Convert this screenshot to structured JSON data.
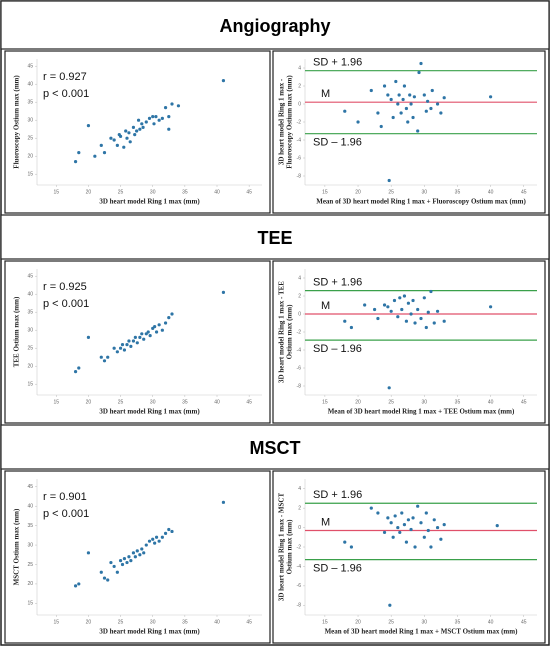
{
  "sections": [
    {
      "title": "Angiography"
    },
    {
      "title": "TEE"
    },
    {
      "title": "MSCT"
    }
  ],
  "chart_data": [
    {
      "type": "scatter",
      "xlabel": "3D heart model Ring 1 max (mm)",
      "ylabel": "Fluoroscopy Ostium max (mm)",
      "annotations": [
        "r = 0.927",
        "p < 0.001"
      ],
      "color": "#2e75a6",
      "x": [
        18,
        18.5,
        20,
        21,
        22,
        22.5,
        23.5,
        24,
        24.5,
        24.8,
        25,
        25.5,
        25.8,
        26,
        26.3,
        26.5,
        27,
        27.2,
        27.5,
        27.8,
        28,
        28.3,
        28.5,
        29,
        29.5,
        30,
        30.2,
        30.5,
        31,
        31.5,
        32,
        32.5,
        33,
        32.5,
        34,
        41
      ],
      "values": [
        18.5,
        21,
        28.5,
        20,
        23,
        21,
        25,
        24.5,
        23,
        26,
        25.5,
        22.5,
        27,
        25,
        26.5,
        24,
        28,
        26,
        27,
        30,
        27.5,
        29,
        28,
        29.5,
        30.5,
        31,
        29,
        31,
        30,
        30.5,
        33.5,
        31,
        34.5,
        27.5,
        34,
        41
      ],
      "xlim": [
        12,
        47
      ],
      "xticks": [
        15,
        20,
        25,
        30,
        35,
        40,
        45
      ],
      "ylim": [
        12,
        47
      ],
      "yticks": [
        15,
        20,
        25,
        30,
        35,
        40,
        45
      ]
    },
    {
      "type": "scatter",
      "xlabel": "Mean of 3D heart model Ring 1 max + Fluoroscopy Ostium max (mm)",
      "ylabel": [
        "3D heart model Ring 1 max -",
        "Fluoroscopy Ostium max (mm)"
      ],
      "color": "#2e75a6",
      "x": [
        18,
        20,
        22,
        23,
        23.5,
        24,
        24.5,
        24.7,
        25,
        25.3,
        25.7,
        26,
        26.2,
        26.5,
        26.8,
        27,
        27.3,
        27.5,
        27.8,
        28,
        28.3,
        28.5,
        29,
        29.2,
        29.5,
        30,
        30.3,
        30.5,
        31,
        31.2,
        32,
        32.5,
        33,
        40
      ],
      "values": [
        -0.8,
        -2,
        1.5,
        -1,
        -2.5,
        2,
        1,
        -8.5,
        0.5,
        -1.5,
        2.5,
        0,
        1,
        -1,
        0.5,
        2,
        -0.5,
        -2,
        1,
        0,
        -1.5,
        0.8,
        -3,
        3.5,
        4.5,
        1,
        -0.8,
        0.3,
        -0.5,
        1.5,
        0,
        -1,
        0.7,
        0.8
      ],
      "hlines": [
        {
          "label": "SD + 1.96",
          "value": 3.7,
          "color": "#3aa04a"
        },
        {
          "label": "M",
          "value": 0.2,
          "color": "#e0506a"
        },
        {
          "label": "SD – 1.96",
          "value": -3.3,
          "color": "#3aa04a"
        }
      ],
      "xlim": [
        12,
        47
      ],
      "xticks": [
        15,
        20,
        25,
        30,
        35,
        40,
        45
      ],
      "ylim": [
        -9,
        5
      ],
      "yticks": [
        -8,
        -6,
        -4,
        -2,
        0,
        2,
        4
      ]
    },
    {
      "type": "scatter",
      "xlabel": "3D heart model Ring 1 max (mm)",
      "ylabel": "TEE Ostium max (mm)",
      "annotations": [
        "r = 0.925",
        "p < 0.001"
      ],
      "color": "#2e75a6",
      "x": [
        18,
        18.5,
        20,
        22,
        22.5,
        23,
        24,
        24.5,
        25,
        25.3,
        25.6,
        26,
        26.3,
        26.6,
        27,
        27.3,
        27.6,
        28,
        28.3,
        28.6,
        29,
        29.3,
        29.6,
        30,
        30.3,
        30.6,
        31,
        31.5,
        32,
        32.5,
        33,
        41
      ],
      "values": [
        18.5,
        19.5,
        28,
        22.5,
        21.5,
        22.5,
        25,
        24,
        25,
        26,
        24.5,
        26,
        27,
        25.5,
        27,
        28,
        26.5,
        28,
        29,
        27.5,
        29,
        29.5,
        28.5,
        30.5,
        31,
        29.5,
        31.5,
        30,
        32,
        33.5,
        34.5,
        40.5
      ],
      "xlim": [
        12,
        47
      ],
      "xticks": [
        15,
        20,
        25,
        30,
        35,
        40,
        45
      ],
      "ylim": [
        12,
        47
      ],
      "yticks": [
        15,
        20,
        25,
        30,
        35,
        40,
        45
      ]
    },
    {
      "type": "scatter",
      "xlabel": "Mean of 3D heart model Ring 1 max + TEE Ostium max (mm)",
      "ylabel": [
        "3D heart model Ring 1 max - TEE",
        "Ostium max (mm)"
      ],
      "color": "#2e75a6",
      "x": [
        18,
        19,
        21,
        22.5,
        23,
        24,
        24.5,
        24.7,
        25,
        25.5,
        26,
        26.3,
        26.6,
        27,
        27.3,
        27.6,
        28,
        28.3,
        28.6,
        29,
        29.5,
        30,
        30.3,
        30.6,
        31,
        31.5,
        32,
        33,
        40
      ],
      "values": [
        -0.8,
        -1.5,
        1,
        0.5,
        -0.5,
        1,
        0.8,
        -8.2,
        0.3,
        1.5,
        -0.3,
        1.8,
        0.5,
        2,
        -0.8,
        1.2,
        0,
        1.5,
        -1,
        0.5,
        -0.5,
        1.8,
        -1.5,
        0.2,
        2.5,
        -1,
        0.3,
        -0.8,
        0.8
      ],
      "hlines": [
        {
          "label": "SD + 1.96",
          "value": 2.6,
          "color": "#3aa04a"
        },
        {
          "label": "M",
          "value": 0,
          "color": "#e0506a"
        },
        {
          "label": "SD – 1.96",
          "value": -2.9,
          "color": "#3aa04a"
        }
      ],
      "xlim": [
        12,
        47
      ],
      "xticks": [
        15,
        20,
        25,
        30,
        35,
        40,
        45
      ],
      "ylim": [
        -9,
        5
      ],
      "yticks": [
        -8,
        -6,
        -4,
        -2,
        0,
        2,
        4
      ]
    },
    {
      "type": "scatter",
      "xlabel": "3D heart model Ring 1 max (mm)",
      "ylabel": "MSCT Ostium max (mm)",
      "annotations": [
        "r = 0.901",
        "p < 0.001"
      ],
      "color": "#2e75a6",
      "x": [
        18,
        18.5,
        20,
        22,
        22.5,
        23,
        23.5,
        24,
        24.5,
        25,
        25.3,
        25.6,
        26,
        26.3,
        26.6,
        27,
        27.3,
        27.6,
        28,
        28.3,
        28.6,
        29,
        29.5,
        30,
        30.3,
        30.6,
        31,
        31.5,
        32,
        32.5,
        33,
        41
      ],
      "values": [
        19.5,
        20,
        28,
        23,
        21.5,
        21,
        25.5,
        24.5,
        23,
        26,
        25,
        26.5,
        25.5,
        27,
        26,
        28,
        27,
        28.5,
        27.5,
        29,
        28,
        30,
        31,
        31.5,
        30.5,
        32,
        31,
        32,
        33,
        34,
        33.5,
        41
      ],
      "xlim": [
        12,
        47
      ],
      "xticks": [
        15,
        20,
        25,
        30,
        35,
        40,
        45
      ],
      "ylim": [
        12,
        47
      ],
      "yticks": [
        15,
        20,
        25,
        30,
        35,
        40,
        45
      ]
    },
    {
      "type": "scatter",
      "xlabel": "Mean of 3D heart model Ring 1 max + MSCT Ostium max (mm)",
      "ylabel": [
        "3D heart model Ring 1 max - MSCT",
        "Ostium max (mm)"
      ],
      "color": "#2e75a6",
      "x": [
        18,
        19,
        22,
        23,
        24,
        24.5,
        24.8,
        25,
        25.3,
        25.6,
        26,
        26.3,
        26.6,
        27,
        27.3,
        27.6,
        28,
        28.3,
        28.6,
        29,
        29.5,
        30,
        30.3,
        30.6,
        31,
        31.5,
        32,
        32.5,
        33,
        41
      ],
      "values": [
        -1.5,
        -2,
        2,
        1.5,
        -0.5,
        1,
        -8,
        0.5,
        -1,
        1.2,
        0,
        -0.5,
        1.5,
        0.3,
        -1.5,
        0.8,
        -0.2,
        1,
        -2,
        2.2,
        0.5,
        -1,
        1.5,
        -0.3,
        -2,
        0.8,
        0,
        -1.2,
        0.3,
        0.2
      ],
      "hlines": [
        {
          "label": "SD + 1.96",
          "value": 2.5,
          "color": "#3aa04a"
        },
        {
          "label": "M",
          "value": -0.3,
          "color": "#e0506a"
        },
        {
          "label": "SD – 1.96",
          "value": -3.3,
          "color": "#3aa04a"
        }
      ],
      "xlim": [
        12,
        47
      ],
      "xticks": [
        15,
        20,
        25,
        30,
        35,
        40,
        45
      ],
      "ylim": [
        -9,
        5
      ],
      "yticks": [
        -8,
        -6,
        -4,
        -2,
        0,
        2,
        4
      ]
    }
  ]
}
